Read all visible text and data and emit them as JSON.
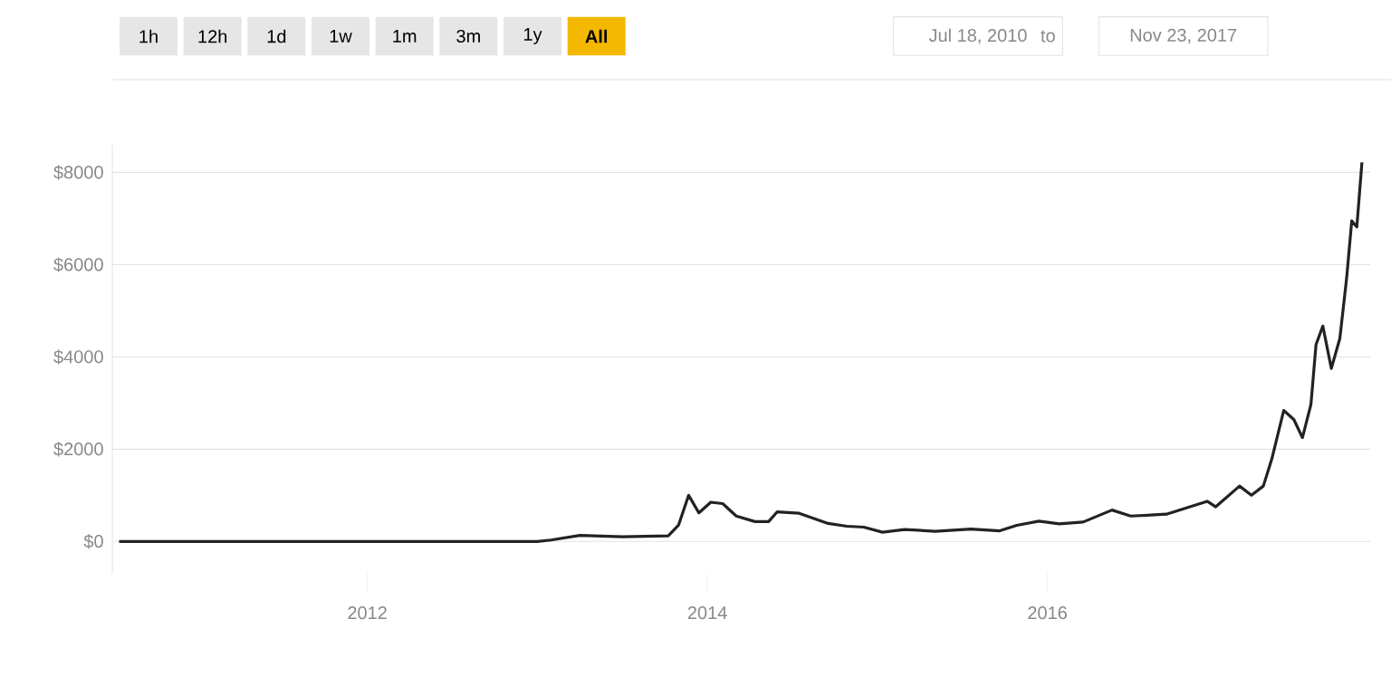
{
  "chart_data": {
    "type": "line",
    "annotations": [
      "1h",
      "12h",
      "1d",
      "1w",
      "1m",
      "3m",
      "1y",
      "All",
      "Jul 18, 2010",
      "to",
      "Nov 23, 2017"
    ],
    "x": [
      2010.54,
      2011.0,
      2011.45,
      2011.9,
      2012.5,
      2013.0,
      2013.08,
      2013.25,
      2013.5,
      2013.77,
      2013.83,
      2013.89,
      2013.95,
      2014.02,
      2014.09,
      2014.17,
      2014.28,
      2014.36,
      2014.41,
      2014.54,
      2014.71,
      2014.82,
      2014.92,
      2015.03,
      2015.16,
      2015.34,
      2015.55,
      2015.72,
      2015.82,
      2015.95,
      2016.07,
      2016.21,
      2016.38,
      2016.49,
      2016.7,
      2016.94,
      2016.99,
      2017.13,
      2017.2,
      2017.27,
      2017.32,
      2017.39,
      2017.45,
      2017.5,
      2017.55,
      2017.58,
      2017.62,
      2017.67,
      2017.72,
      2017.76,
      2017.79,
      2017.82,
      2017.85
    ],
    "series": [
      {
        "color": "#222222",
        "values": [
          0,
          0,
          0,
          0,
          0,
          0,
          30,
          130,
          100,
          120,
          350,
          1000,
          620,
          850,
          820,
          550,
          430,
          430,
          640,
          610,
          390,
          330,
          310,
          200,
          260,
          220,
          270,
          230,
          350,
          440,
          380,
          420,
          680,
          550,
          590,
          870,
          750,
          1200,
          1000,
          1200,
          1790,
          2840,
          2640,
          2250,
          2970,
          4270,
          4670,
          3750,
          4400,
          5710,
          6950,
          6820,
          8220
        ]
      }
    ],
    "xlim": [
      2010.5,
      2017.9
    ],
    "ylim": [
      -700,
      8600
    ],
    "xticks": [
      2012,
      2014,
      2016
    ],
    "yticks": [
      {
        "value": 0,
        "label": "$0"
      },
      {
        "value": 2000,
        "label": "$2000"
      },
      {
        "value": 4000,
        "label": "$4000"
      },
      {
        "value": 6000,
        "label": "$6000"
      },
      {
        "value": 8000,
        "label": "$8000"
      }
    ],
    "grid": "y",
    "marker": "none",
    "line_style": "solid"
  }
}
